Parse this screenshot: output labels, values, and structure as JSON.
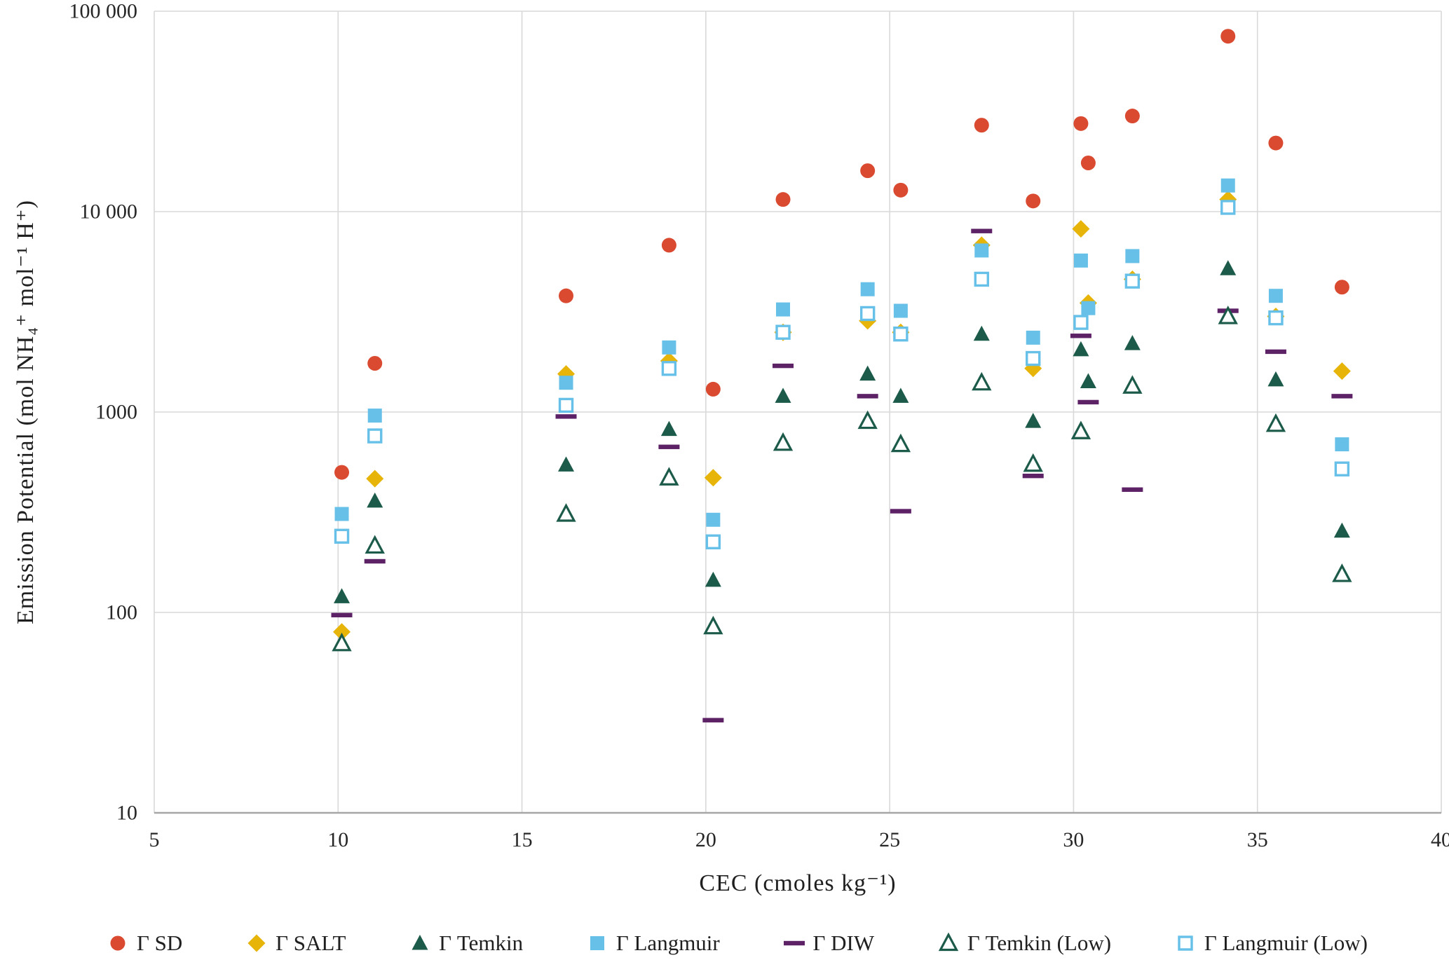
{
  "chart_data": {
    "type": "scatter",
    "title": "",
    "xlabel": "CEC (cmoles kg⁻¹)",
    "ylabel": "Emission Potential (mol NH₄⁺ mol⁻¹ H⁺)",
    "grid": true,
    "legend_position": "bottom",
    "x_axis": {
      "min": 5,
      "max": 40,
      "ticks": [
        5,
        10,
        15,
        20,
        25,
        30,
        35,
        40
      ]
    },
    "y_axis": {
      "scale": "log",
      "min": 10,
      "max": 100000,
      "tick_values": [
        10,
        100,
        1000,
        10000,
        100000
      ],
      "tick_labels": [
        "10",
        "100",
        "1000",
        "10 000",
        "100 000"
      ]
    },
    "colors": {
      "grid": "#d9d9d9",
      "axis": "#a6a6a6",
      "text": "#262626"
    },
    "series": [
      {
        "name": "Γ SD",
        "marker": "circle",
        "fill": true,
        "color": "#d94a30",
        "points": [
          [
            10.1,
            500
          ],
          [
            11,
            1750
          ],
          [
            16.2,
            3800
          ],
          [
            19,
            6800
          ],
          [
            20.2,
            1300
          ],
          [
            22.1,
            11500
          ],
          [
            24.4,
            16000
          ],
          [
            25.3,
            12800
          ],
          [
            27.5,
            27000
          ],
          [
            28.9,
            11300
          ],
          [
            30.2,
            27500
          ],
          [
            30.4,
            17500
          ],
          [
            31.6,
            30000
          ],
          [
            34.2,
            75000
          ],
          [
            35.5,
            22000
          ],
          [
            37.3,
            4200
          ]
        ]
      },
      {
        "name": "Γ SALT",
        "marker": "diamond",
        "fill": true,
        "color": "#e7b40a",
        "points": [
          [
            10.1,
            80
          ],
          [
            11,
            465
          ],
          [
            16.2,
            1550
          ],
          [
            19,
            1800
          ],
          [
            20.2,
            470
          ],
          [
            22.1,
            2500
          ],
          [
            24.4,
            2850
          ],
          [
            25.3,
            2500
          ],
          [
            27.5,
            6800
          ],
          [
            28.9,
            1650
          ],
          [
            30.2,
            8200
          ],
          [
            30.4,
            3500
          ],
          [
            31.6,
            4600
          ],
          [
            34.2,
            11500
          ],
          [
            35.5,
            3000
          ],
          [
            37.3,
            1600
          ]
        ]
      },
      {
        "name": "Γ Temkin",
        "marker": "triangle",
        "fill": true,
        "color": "#1c5a49",
        "points": [
          [
            10.1,
            120
          ],
          [
            11,
            360
          ],
          [
            16.2,
            545
          ],
          [
            19,
            820
          ],
          [
            20.2,
            145
          ],
          [
            22.1,
            1200
          ],
          [
            24.4,
            1550
          ],
          [
            25.3,
            1200
          ],
          [
            27.5,
            2450
          ],
          [
            28.9,
            900
          ],
          [
            30.2,
            2050
          ],
          [
            30.4,
            1420
          ],
          [
            31.6,
            2200
          ],
          [
            34.2,
            5200
          ],
          [
            35.5,
            1450
          ],
          [
            37.3,
            255
          ]
        ]
      },
      {
        "name": "Γ Langmuir",
        "marker": "square",
        "fill": true,
        "color": "#66c0e8",
        "points": [
          [
            10.1,
            310
          ],
          [
            11,
            960
          ],
          [
            16.2,
            1400
          ],
          [
            19,
            2100
          ],
          [
            20.2,
            290
          ],
          [
            22.1,
            3250
          ],
          [
            24.4,
            4100
          ],
          [
            25.3,
            3200
          ],
          [
            27.5,
            6400
          ],
          [
            28.9,
            2350
          ],
          [
            30.2,
            5700
          ],
          [
            30.4,
            3300
          ],
          [
            31.6,
            6000
          ],
          [
            34.2,
            13500
          ],
          [
            35.5,
            3800
          ],
          [
            37.3,
            690
          ]
        ]
      },
      {
        "name": "Γ DIW",
        "marker": "dash",
        "fill": true,
        "color": "#5d2166",
        "points": [
          [
            10.1,
            97
          ],
          [
            11,
            180
          ],
          [
            16.2,
            950
          ],
          [
            19,
            670
          ],
          [
            20.2,
            29
          ],
          [
            22.1,
            1700
          ],
          [
            24.4,
            1200
          ],
          [
            25.3,
            320
          ],
          [
            27.5,
            8000
          ],
          [
            28.9,
            480
          ],
          [
            30.2,
            2400
          ],
          [
            30.4,
            1120
          ],
          [
            31.6,
            410
          ],
          [
            34.2,
            3200
          ],
          [
            35.5,
            2000
          ],
          [
            37.3,
            1200
          ]
        ]
      },
      {
        "name": "Γ Temkin (Low)",
        "marker": "triangle",
        "fill": false,
        "color": "#1c5a49",
        "points": [
          [
            10.1,
            70
          ],
          [
            11,
            215
          ],
          [
            16.2,
            310
          ],
          [
            19,
            470
          ],
          [
            20.2,
            85
          ],
          [
            22.1,
            700
          ],
          [
            24.4,
            900
          ],
          [
            25.3,
            690
          ],
          [
            27.5,
            1400
          ],
          [
            28.9,
            550
          ],
          [
            30.2,
            800
          ],
          [
            31.6,
            1350
          ],
          [
            34.2,
            3000
          ],
          [
            35.5,
            870
          ],
          [
            37.3,
            155
          ]
        ]
      },
      {
        "name": "Γ Langmuir (Low)",
        "marker": "square",
        "fill": false,
        "color": "#66c0e8",
        "points": [
          [
            10.1,
            240
          ],
          [
            11,
            760
          ],
          [
            16.2,
            1080
          ],
          [
            19,
            1650
          ],
          [
            20.2,
            225
          ],
          [
            22.1,
            2500
          ],
          [
            24.4,
            3100
          ],
          [
            25.3,
            2450
          ],
          [
            27.5,
            4600
          ],
          [
            28.9,
            1850
          ],
          [
            30.2,
            2800
          ],
          [
            31.6,
            4500
          ],
          [
            34.2,
            10500
          ],
          [
            35.5,
            2950
          ],
          [
            37.3,
            520
          ]
        ]
      }
    ]
  }
}
